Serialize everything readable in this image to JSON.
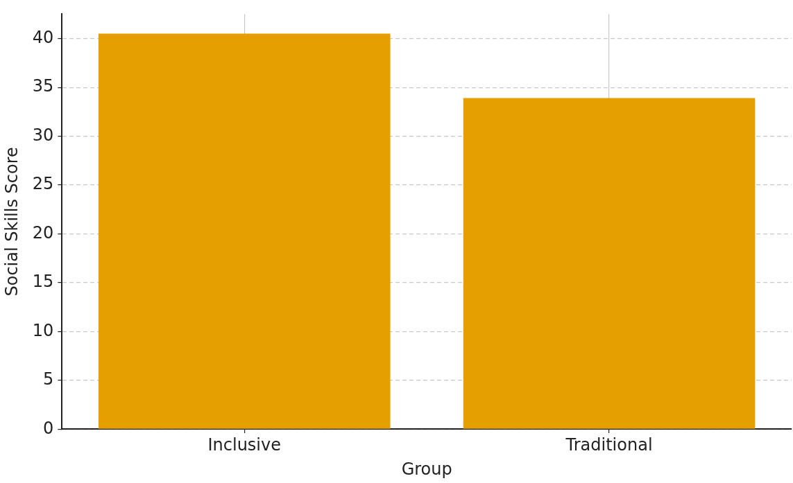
{
  "chart_data": {
    "type": "bar",
    "xlabel": "Group",
    "ylabel": "Social Skills Score",
    "categories": [
      "Inclusive",
      "Traditional"
    ],
    "values": [
      40.5,
      33.9
    ],
    "color": "#e69f00",
    "ylim": [
      0,
      42.5
    ],
    "yticks": [
      0,
      5,
      10,
      15,
      20,
      25,
      30,
      35,
      40
    ],
    "grid": true
  }
}
